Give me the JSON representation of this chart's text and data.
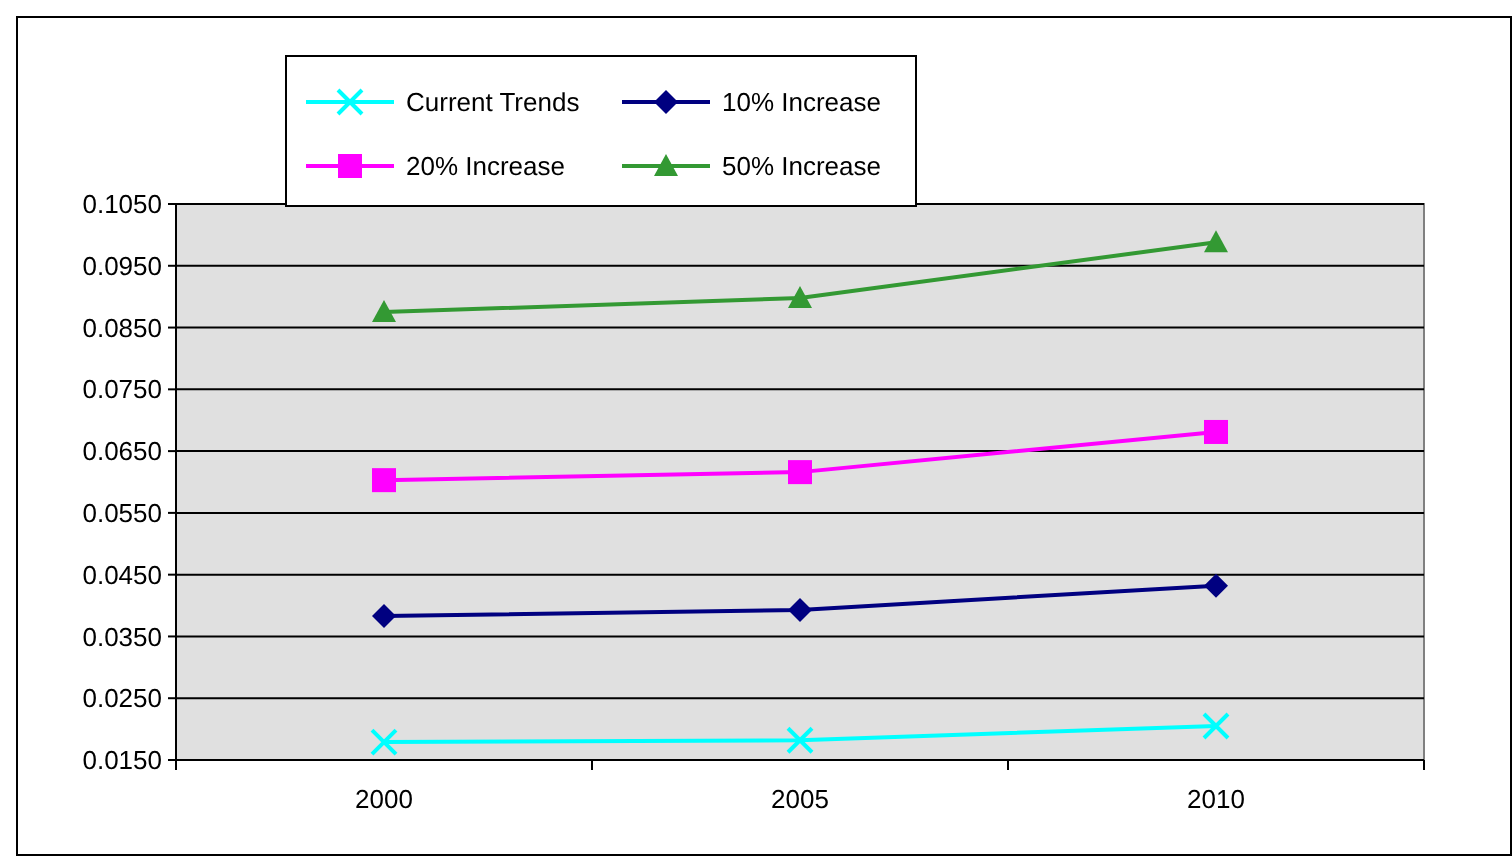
{
  "chart_data": {
    "type": "line",
    "categories": [
      "2000",
      "2005",
      "2010"
    ],
    "series": [
      {
        "name": "Current Trends",
        "color": "#00ffff",
        "marker": "cross",
        "values": [
          0.0179,
          0.0182,
          0.0205
        ]
      },
      {
        "name": "10% Increase",
        "color": "#000080",
        "marker": "diamond",
        "values": [
          0.0383,
          0.0393,
          0.0432
        ]
      },
      {
        "name": "20% Increase",
        "color": "#ff00ff",
        "marker": "square",
        "values": [
          0.0603,
          0.0616,
          0.0681
        ]
      },
      {
        "name": "50% Increase",
        "color": "#339933",
        "marker": "triangle",
        "values": [
          0.0875,
          0.0898,
          0.0988
        ]
      }
    ],
    "ylim": [
      0.015,
      0.105
    ],
    "yticks": [
      {
        "value": 0.015,
        "label": "0.0150"
      },
      {
        "value": 0.025,
        "label": "0.0250"
      },
      {
        "value": 0.035,
        "label": "0.0350"
      },
      {
        "value": 0.045,
        "label": "0.0450"
      },
      {
        "value": 0.055,
        "label": "0.0550"
      },
      {
        "value": 0.065,
        "label": "0.0650"
      },
      {
        "value": 0.075,
        "label": "0.0750"
      },
      {
        "value": 0.085,
        "label": "0.0850"
      },
      {
        "value": 0.095,
        "label": "0.0950"
      },
      {
        "value": 0.105,
        "label": "0.1050"
      }
    ],
    "grid": "y",
    "legend": "top left",
    "line_style": "solid"
  }
}
